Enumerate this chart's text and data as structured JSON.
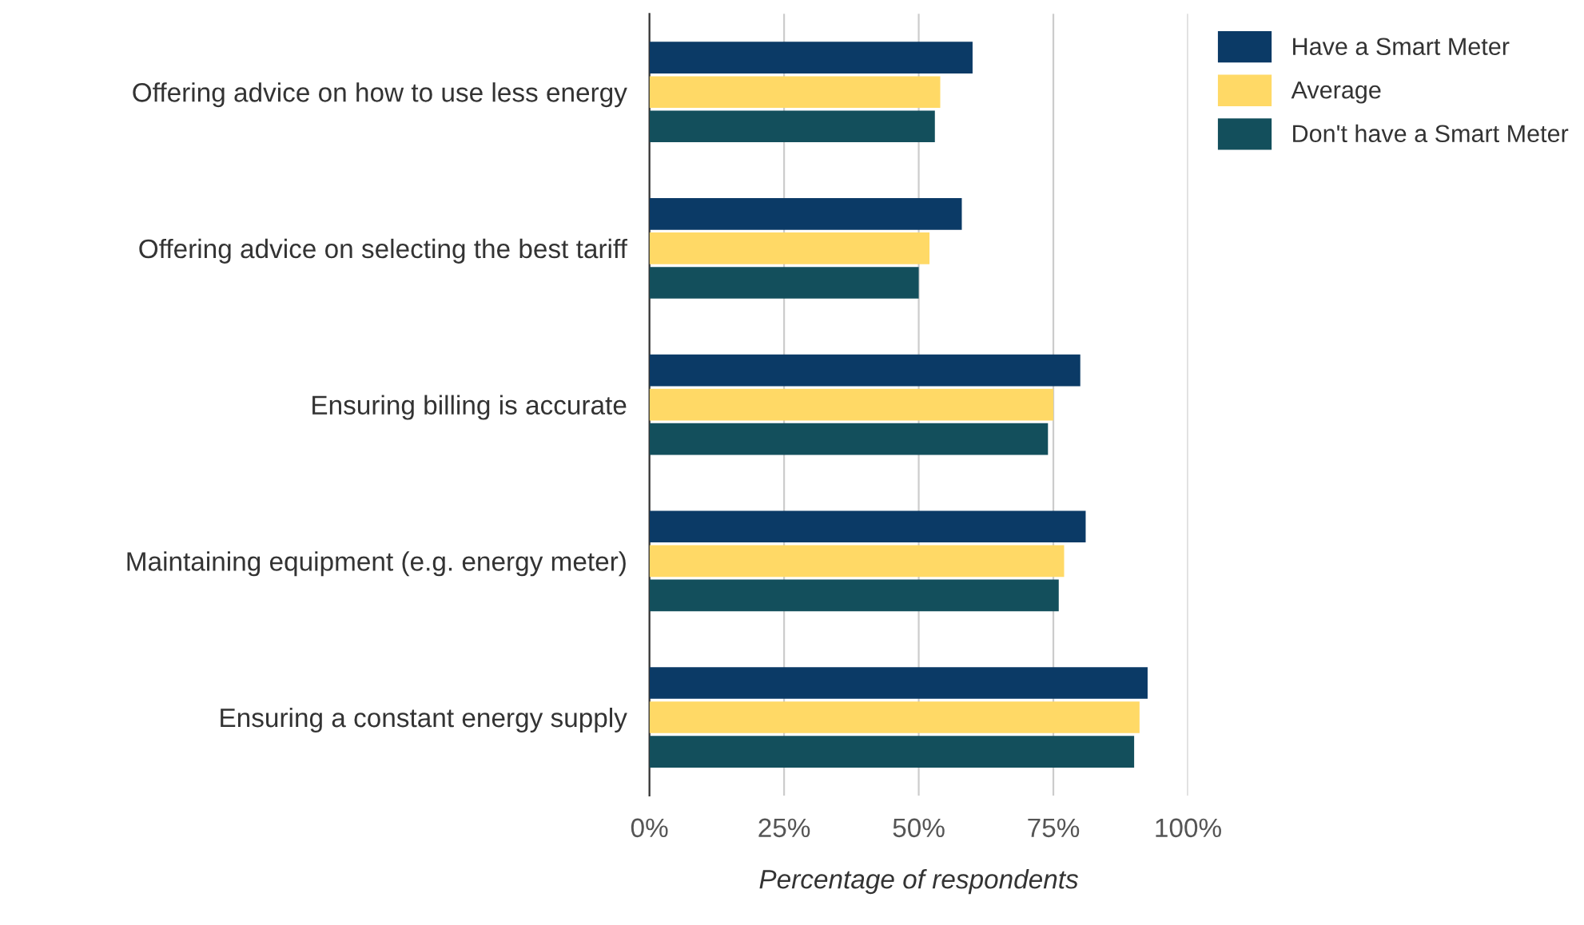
{
  "chart_data": {
    "type": "bar",
    "orientation": "horizontal",
    "xlabel": "Percentage of respondents",
    "categories": [
      "Offering advice on how to use less energy",
      "Offering advice on selecting the best tariff",
      "Ensuring billing is accurate",
      "Maintaining equipment (e.g. energy meter)",
      "Ensuring a constant energy supply"
    ],
    "series": [
      {
        "name": "Have a Smart Meter",
        "color": "#0b3a66",
        "values": [
          60,
          58,
          80,
          81,
          92.5
        ]
      },
      {
        "name": "Average",
        "color": "#ffd966",
        "values": [
          54,
          52,
          75,
          77,
          91
        ]
      },
      {
        "name": "Don't have a Smart Meter",
        "color": "#134f5c",
        "values": [
          53,
          50,
          74,
          76,
          90
        ]
      }
    ],
    "xlim": [
      0,
      100
    ],
    "xticks": [
      {
        "value": 0,
        "label": "0%"
      },
      {
        "value": 25,
        "label": "25%"
      },
      {
        "value": 50,
        "label": "50%"
      },
      {
        "value": 75,
        "label": "75%"
      },
      {
        "value": 100,
        "label": "100%"
      }
    ],
    "grid": "x",
    "legend": "top right"
  }
}
